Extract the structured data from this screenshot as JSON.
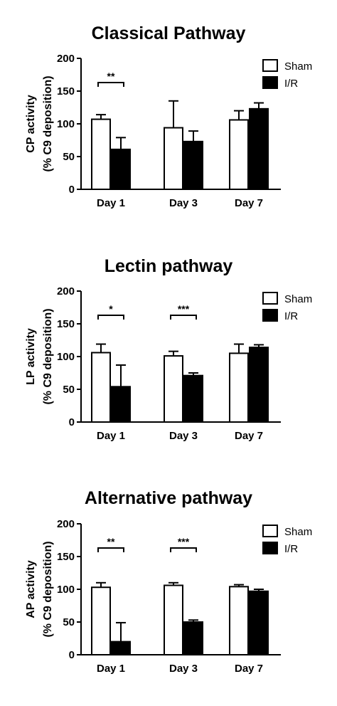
{
  "chart_data": [
    {
      "type": "bar",
      "title": "Classical Pathway",
      "ylabel_line1": "CP activity",
      "ylabel_line2": "(% C9 deposition)",
      "ylim": [
        0,
        200
      ],
      "yticks": [
        0,
        50,
        100,
        150,
        200
      ],
      "categories": [
        "Day 1",
        "Day 3",
        "Day 7"
      ],
      "series": [
        {
          "name": "Sham",
          "color": "#ffffff",
          "values": [
            107,
            94,
            106
          ],
          "errors": [
            7,
            41,
            14
          ]
        },
        {
          "name": "I/R",
          "color": "#000000",
          "values": [
            61,
            73,
            123
          ],
          "errors": [
            18,
            16,
            9
          ]
        }
      ],
      "significance": [
        {
          "category": "Day 1",
          "label": "**"
        }
      ],
      "legend": "top-right"
    },
    {
      "type": "bar",
      "title": "Lectin pathway",
      "ylabel_line1": "LP activity",
      "ylabel_line2": "(% C9 deposition)",
      "ylim": [
        0,
        200
      ],
      "yticks": [
        0,
        50,
        100,
        150,
        200
      ],
      "categories": [
        "Day 1",
        "Day 3",
        "Day 7"
      ],
      "series": [
        {
          "name": "Sham",
          "color": "#ffffff",
          "values": [
            106,
            101,
            105
          ],
          "errors": [
            13,
            7,
            14
          ]
        },
        {
          "name": "I/R",
          "color": "#000000",
          "values": [
            54,
            71,
            114
          ],
          "errors": [
            33,
            4,
            4
          ]
        }
      ],
      "significance": [
        {
          "category": "Day 1",
          "label": "*"
        },
        {
          "category": "Day 3",
          "label": "***"
        }
      ],
      "legend": "top-right"
    },
    {
      "type": "bar",
      "title": "Alternative pathway",
      "ylabel_line1": "AP activity",
      "ylabel_line2": "(% C9 deposition)",
      "ylim": [
        0,
        200
      ],
      "yticks": [
        0,
        50,
        100,
        150,
        200
      ],
      "categories": [
        "Day 1",
        "Day 3",
        "Day 7"
      ],
      "series": [
        {
          "name": "Sham",
          "color": "#ffffff",
          "values": [
            103,
            106,
            104
          ],
          "errors": [
            7,
            4,
            3
          ]
        },
        {
          "name": "I/R",
          "color": "#000000",
          "values": [
            20,
            50,
            97
          ],
          "errors": [
            29,
            3,
            3
          ]
        }
      ],
      "significance": [
        {
          "category": "Day 1",
          "label": "**"
        },
        {
          "category": "Day 3",
          "label": "***"
        }
      ],
      "legend": "top-right"
    }
  ]
}
